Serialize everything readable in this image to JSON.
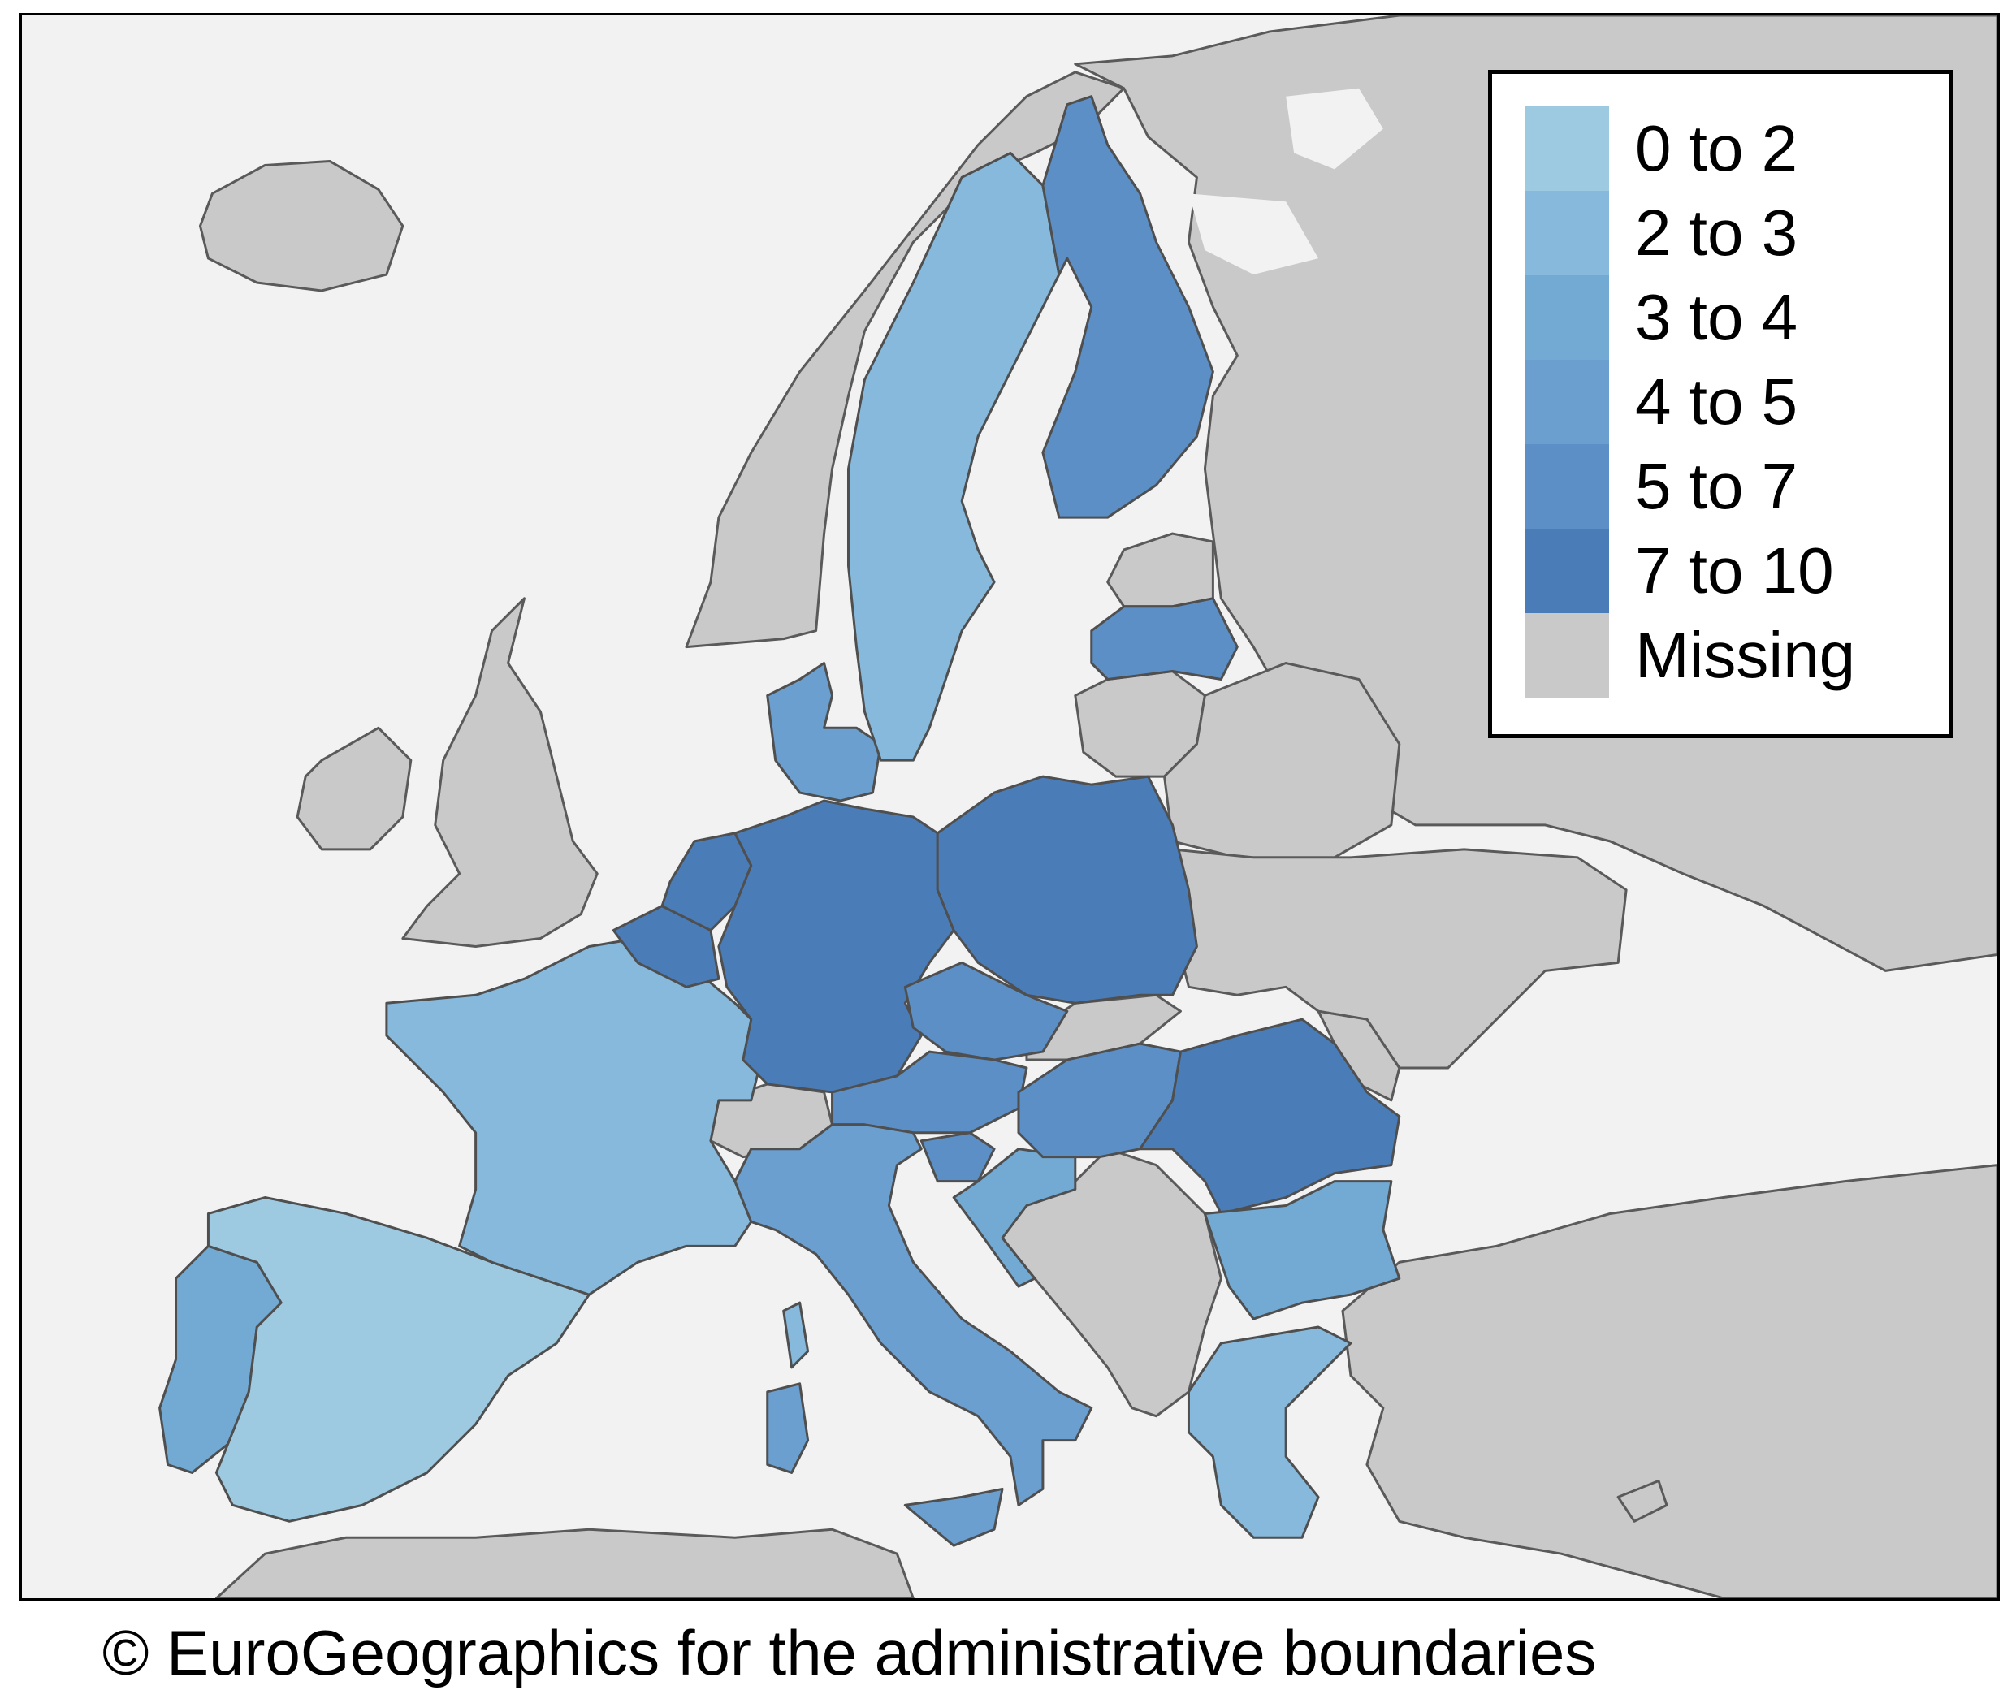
{
  "legend": {
    "items": [
      {
        "label": "0 to 2",
        "color": "#9ecae1"
      },
      {
        "label": "2 to 3",
        "color": "#86b9db"
      },
      {
        "label": "3 to 4",
        "color": "#72aad4"
      },
      {
        "label": "4 to 5",
        "color": "#6a9fcf"
      },
      {
        "label": "5 to 7",
        "color": "#5b8fc6"
      },
      {
        "label": "7 to 10",
        "color": "#4a7db8"
      },
      {
        "label": "Missing",
        "color": "#c9c9c9"
      }
    ]
  },
  "map": {
    "background_sea": "#f2f2f2",
    "country_classes": {
      "Portugal": "3 to 4",
      "Spain": "0 to 2",
      "France": "2 to 3",
      "Belgium": "7 to 10",
      "Netherlands": "7 to 10",
      "Germany": "7 to 10",
      "Denmark": "4 to 5",
      "Sweden": "2 to 3",
      "Finland": "5 to 7",
      "Latvia": "5 to 7",
      "Poland": "7 to 10",
      "Czechia": "5 to 7",
      "Austria": "5 to 7",
      "Slovenia": "5 to 7",
      "Italy": "4 to 5",
      "Hungary": "5 to 7",
      "Romania": "7 to 10",
      "Bulgaria": "3 to 4",
      "Greece": "2 to 3",
      "Croatia": "3 to 4"
    }
  },
  "caption": "© EuroGeographics for the administrative boundaries"
}
